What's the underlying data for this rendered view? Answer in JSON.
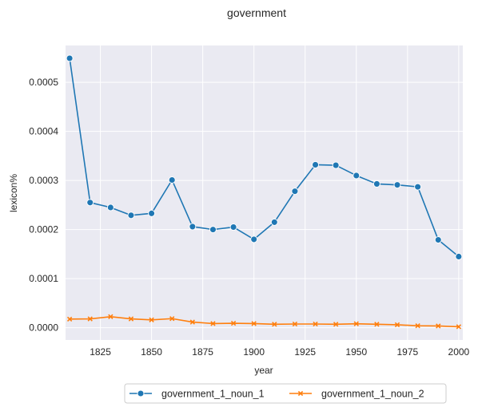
{
  "chart_data": {
    "type": "line",
    "title": "government",
    "xlabel": "year",
    "ylabel": "lexicon%",
    "xlim": [
      1808,
      2002
    ],
    "ylim": [
      -2.5e-05,
      0.000575
    ],
    "x_ticks": [
      1825,
      1850,
      1875,
      1900,
      1925,
      1950,
      1975,
      2000
    ],
    "y_ticks": [
      0.0,
      0.0001,
      0.0002,
      0.0003,
      0.0004,
      0.0005
    ],
    "y_tick_labels": [
      "0.0000",
      "0.0001",
      "0.0002",
      "0.0003",
      "0.0004",
      "0.0005"
    ],
    "grid": true,
    "legend_position": "bottom-center",
    "x": [
      1810,
      1820,
      1830,
      1840,
      1850,
      1860,
      1870,
      1880,
      1890,
      1900,
      1910,
      1920,
      1930,
      1940,
      1950,
      1960,
      1970,
      1980,
      1990,
      2000
    ],
    "series": [
      {
        "name": "government_1_noun_1",
        "color": "#1f77b4",
        "marker": "circle",
        "values": [
          0.000549,
          0.000255,
          0.000245,
          0.000229,
          0.000233,
          0.000301,
          0.000206,
          0.0002,
          0.000205,
          0.00018,
          0.000215,
          0.000278,
          0.000332,
          0.000331,
          0.00031,
          0.000293,
          0.000291,
          0.000287,
          0.000179,
          0.000145
        ]
      },
      {
        "name": "government_1_noun_2",
        "color": "#ff7f0e",
        "marker": "x",
        "values": [
          1.75e-05,
          1.8e-05,
          2.25e-05,
          1.8e-05,
          1.6e-05,
          1.85e-05,
          1.15e-05,
          8.5e-06,
          9e-06,
          8.5e-06,
          7e-06,
          7.5e-06,
          7.5e-06,
          7e-06,
          8e-06,
          7e-06,
          6e-06,
          4e-06,
          3.5e-06,
          2e-06
        ]
      }
    ]
  }
}
